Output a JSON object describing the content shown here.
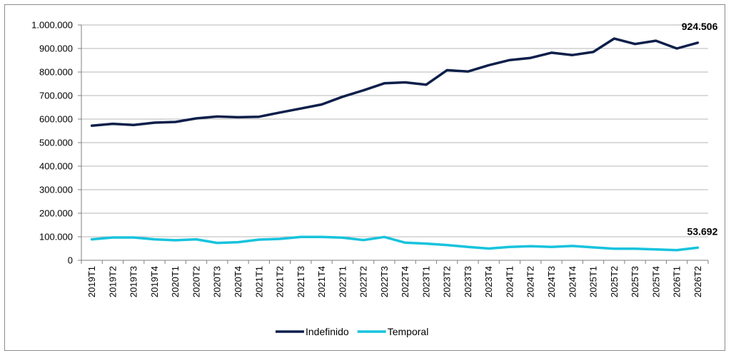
{
  "chart_data": {
    "type": "line",
    "title": "",
    "xlabel": "",
    "ylabel": "",
    "ylim": [
      0,
      1000000
    ],
    "yticks": [
      "0",
      "100.000",
      "200.000",
      "300.000",
      "400.000",
      "500.000",
      "600.000",
      "700.000",
      "800.000",
      "900.000",
      "1.000.000"
    ],
    "grid": true,
    "legend_position": "bottom",
    "categories": [
      "2019T1",
      "2019T2",
      "2019T3",
      "2019T4",
      "2020T1",
      "2020T2",
      "2020T3",
      "2020T4",
      "2021T1",
      "2021T2",
      "2021T3",
      "2021T4",
      "2022T1",
      "2022T2",
      "2022T3",
      "2022T4",
      "2023T1",
      "2023T2",
      "2023T3",
      "2023T4",
      "2024T1",
      "2024T2",
      "2024T3",
      "2024T4",
      "2025T1",
      "2025T2",
      "2025T3",
      "2025T4",
      "2026T1",
      "2026T2"
    ],
    "series": [
      {
        "name": "Indefinido",
        "color": "#0d1f4a",
        "values": [
          572000,
          580000,
          575000,
          585000,
          588000,
          603000,
          611000,
          608000,
          610000,
          628000,
          645000,
          662000,
          695000,
          722000,
          752000,
          756000,
          746000,
          808000,
          802000,
          829000,
          851000,
          860000,
          882000,
          872000,
          885000,
          942000,
          919000,
          933000,
          900000,
          924506
        ]
      },
      {
        "name": "Temporal",
        "color": "#17c3dd",
        "values": [
          89000,
          97000,
          97000,
          89000,
          85000,
          89000,
          74000,
          77000,
          88000,
          91000,
          99000,
          99000,
          96000,
          86000,
          99000,
          75000,
          71000,
          65000,
          57000,
          50000,
          57000,
          60000,
          57000,
          61000,
          55000,
          49000,
          49000,
          46000,
          43000,
          53692
        ]
      }
    ],
    "data_labels": [
      {
        "series": "Indefinido",
        "category": "2026T2",
        "text": "924.506"
      },
      {
        "series": "Temporal",
        "category": "2026T2",
        "text": "53.692"
      }
    ]
  }
}
